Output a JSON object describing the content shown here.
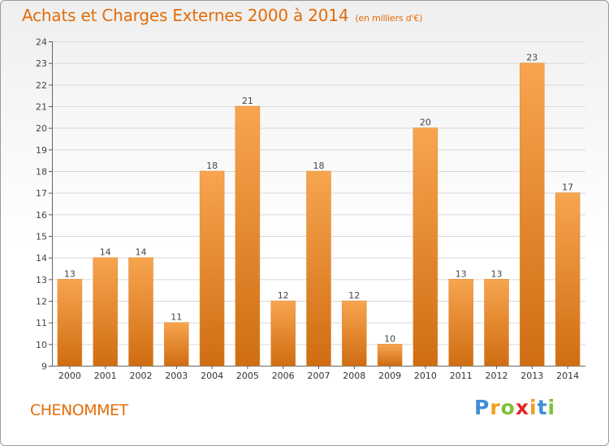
{
  "header": {
    "title": "Achats et Charges Externes 2000 à 2014",
    "subtitle": "(en milliers d'€)"
  },
  "footer": {
    "commune": "CHENOMMET",
    "logo_letters": [
      "P",
      "r",
      "o",
      "x",
      "i",
      "t",
      "i"
    ],
    "logo_colors": [
      "#3f8fd4",
      "#f29d1f",
      "#7fbf3b",
      "#e52626",
      "#f29d1f",
      "#3f8fd4",
      "#7fbf3b"
    ]
  },
  "chart_data": {
    "type": "bar",
    "title": "Achats et Charges Externes 2000 à 2014",
    "categories": [
      "2000",
      "2001",
      "2002",
      "2003",
      "2004",
      "2005",
      "2006",
      "2007",
      "2008",
      "2009",
      "2010",
      "2011",
      "2012",
      "2013",
      "2014"
    ],
    "values": [
      13,
      14,
      14,
      11,
      18,
      21,
      12,
      18,
      12,
      10,
      20,
      13,
      13,
      23,
      17
    ],
    "ylim": [
      9,
      24
    ],
    "yticks": [
      "9",
      "10",
      "11",
      "12",
      "13",
      "14",
      "15",
      "16",
      "17",
      "18",
      "19",
      "20",
      "21",
      "22",
      "23",
      "24"
    ],
    "grid": true,
    "bar_color_light": "#f7a54f",
    "bar_color_dark": "#d06d12"
  }
}
